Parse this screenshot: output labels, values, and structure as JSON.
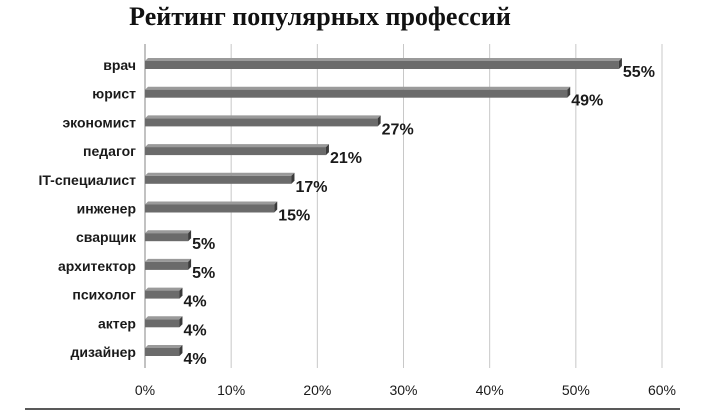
{
  "chart_data": {
    "type": "bar",
    "orientation": "horizontal",
    "title": "Рейтинг популярных профессий",
    "categories": [
      "врач",
      "юрист",
      "экономист",
      "педагог",
      "IT-специалист",
      "инженер",
      "сварщик",
      "архитектор",
      "психолог",
      "актер",
      "дизайнер"
    ],
    "values": [
      55,
      49,
      27,
      21,
      17,
      15,
      5,
      5,
      4,
      4,
      4
    ],
    "value_labels": [
      "55%",
      "49%",
      "27%",
      "21%",
      "17%",
      "15%",
      "5%",
      "5%",
      "4%",
      "4%",
      "4%"
    ],
    "xlim": [
      0,
      60
    ],
    "x_ticks": [
      "0%",
      "10%",
      "20%",
      "30%",
      "40%",
      "50%",
      "60%"
    ],
    "grid": "vertical",
    "legend": "none",
    "colors": {
      "bar": "#6b6b6b",
      "bar_top": "#9a9a9a",
      "bar_side": "#3a3a3a",
      "grid": "#c8c8c8",
      "text": "#1a1a1a"
    }
  }
}
